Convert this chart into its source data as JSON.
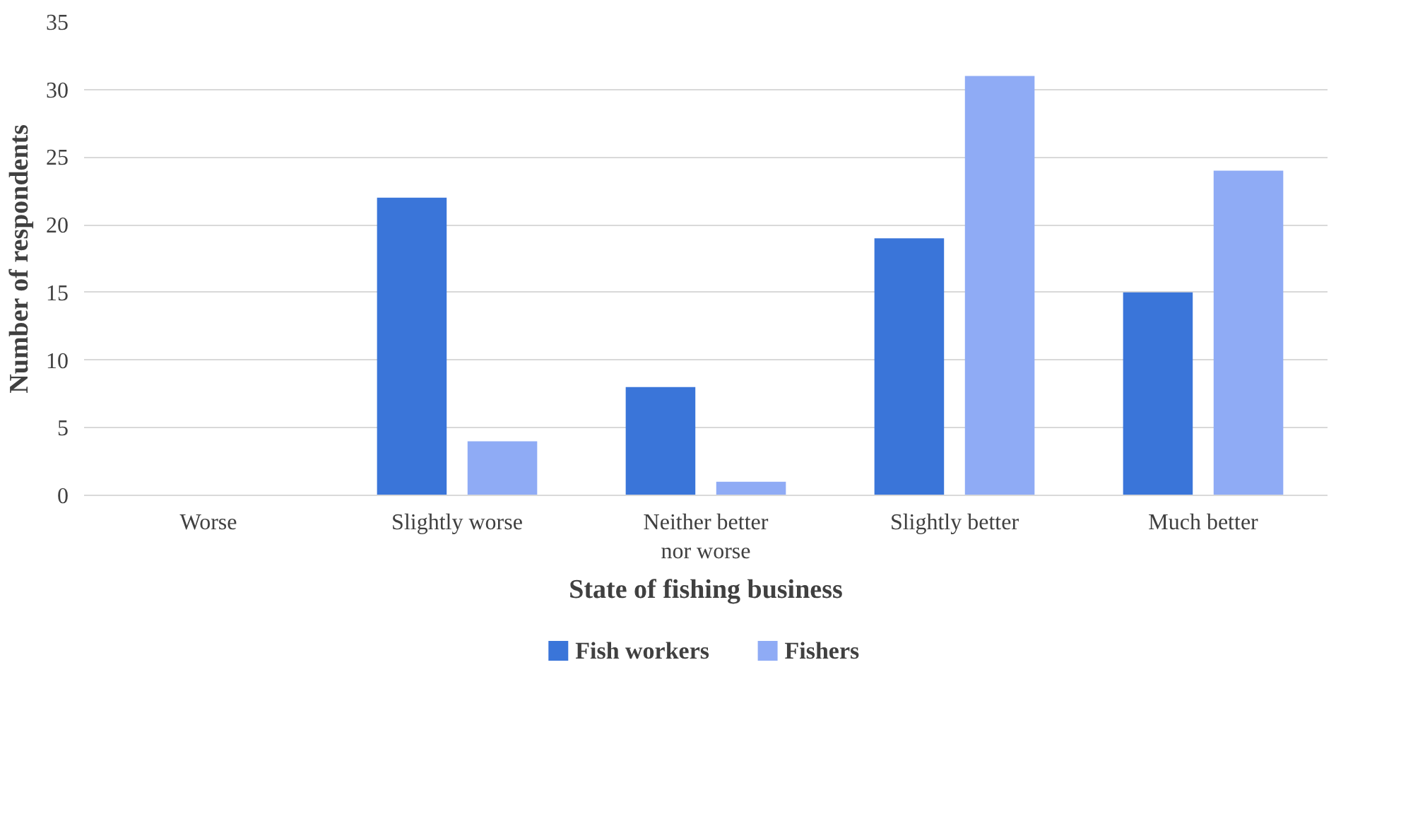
{
  "chart_data": {
    "type": "bar",
    "xlabel": "State of fishing business",
    "ylabel": "Number of respondents",
    "categories": [
      "Worse",
      "Slightly worse",
      "Neither better nor worse",
      "Slightly better",
      "Much better"
    ],
    "series": [
      {
        "name": "Fish workers",
        "color": "#3a75d9",
        "values": [
          0,
          22,
          8,
          19,
          15
        ]
      },
      {
        "name": "Fishers",
        "color": "#8fabf5",
        "values": [
          0,
          4,
          1,
          31,
          24
        ]
      }
    ],
    "ylim": [
      0,
      35
    ],
    "yticks": [
      0,
      5,
      10,
      15,
      20,
      25,
      30,
      35
    ],
    "grid": "y",
    "legend": "bottom"
  }
}
